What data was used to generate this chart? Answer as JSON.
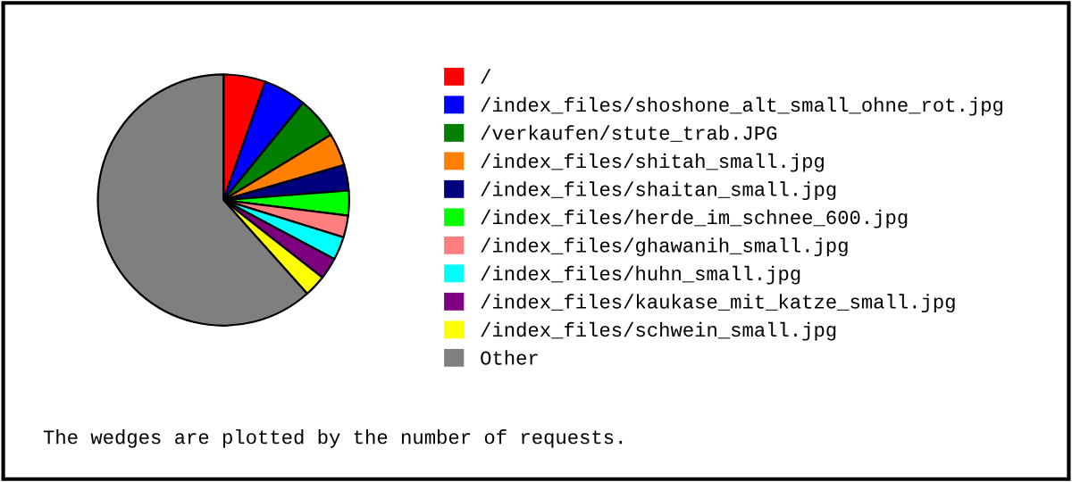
{
  "chart_data": {
    "type": "pie",
    "categories": [
      "/",
      "/index_files/shoshone_alt_small_ohne_rot.jpg",
      "/verkaufen/stute_trab.JPG",
      "/index_files/shitah_small.jpg",
      "/index_files/shaitan_small.jpg",
      "/index_files/herde_im_schnee_600.jpg",
      "/index_files/ghawanih_small.jpg",
      "/index_files/huhn_small.jpg",
      "/index_files/kaukase_mit_katze_small.jpg",
      "/index_files/schwein_small.jpg",
      "Other"
    ],
    "values": [
      5.4,
      5.5,
      5.4,
      4.2,
      3.3,
      3.2,
      2.8,
      3.0,
      2.8,
      2.8,
      61.6
    ],
    "colors": [
      "#ff0000",
      "#0000ff",
      "#007f00",
      "#ff7f00",
      "#00007f",
      "#00ff00",
      "#ff7f7f",
      "#00ffff",
      "#7f007f",
      "#ffff00",
      "#7f7f7f"
    ],
    "legend": "right",
    "annotations": [
      "The wedges are plotted by the number of requests."
    ]
  }
}
